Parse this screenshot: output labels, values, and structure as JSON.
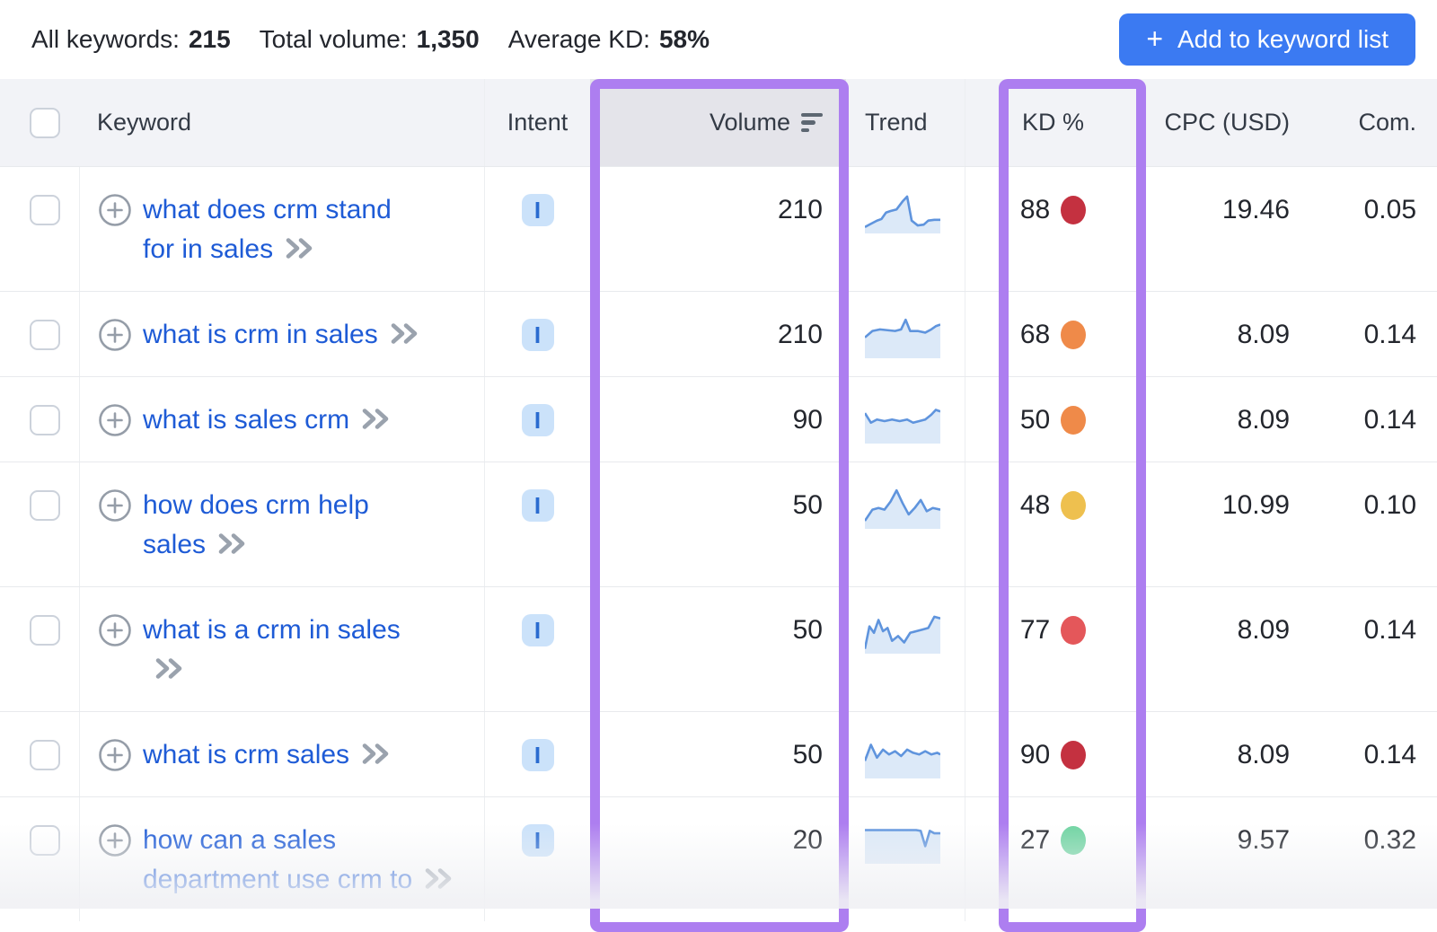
{
  "summary": {
    "items": [
      {
        "label": "All keywords:",
        "value": "215"
      },
      {
        "label": "Total volume:",
        "value": "1,350"
      },
      {
        "label": "Average KD:",
        "value": "58%"
      }
    ]
  },
  "toolbar": {
    "add_to_list": {
      "plus": "+",
      "label": "Add to keyword list"
    }
  },
  "table": {
    "headers": {
      "keyword": "Keyword",
      "intent": "Intent",
      "volume": "Volume",
      "trend": "Trend",
      "kd": "KD %",
      "cpc": "CPC (USD)",
      "com": "Com."
    },
    "rows": [
      {
        "keyword": "what does crm stand\nfor in sales",
        "intent": "I",
        "volume": "210",
        "kd": "88",
        "kd_level": "very_hard",
        "cpc": "19.46",
        "com": "0.05",
        "trend": [
          [
            0,
            48
          ],
          [
            8,
            44
          ],
          [
            16,
            40
          ],
          [
            22,
            38
          ],
          [
            28,
            30
          ],
          [
            34,
            28
          ],
          [
            42,
            26
          ],
          [
            50,
            16
          ],
          [
            56,
            10
          ],
          [
            62,
            40
          ],
          [
            70,
            46
          ],
          [
            78,
            45
          ],
          [
            84,
            40
          ],
          [
            92,
            39
          ],
          [
            100,
            39
          ]
        ]
      },
      {
        "keyword": "what is crm in sales",
        "intent": "I",
        "volume": "210",
        "kd": "68",
        "kd_level": "difficult",
        "cpc": "8.09",
        "com": "0.14",
        "trend": [
          [
            0,
            30
          ],
          [
            10,
            22
          ],
          [
            20,
            20
          ],
          [
            30,
            21
          ],
          [
            40,
            22
          ],
          [
            48,
            20
          ],
          [
            54,
            8
          ],
          [
            60,
            22
          ],
          [
            70,
            22
          ],
          [
            80,
            24
          ],
          [
            88,
            20
          ],
          [
            94,
            16
          ],
          [
            100,
            14
          ]
        ]
      },
      {
        "keyword": "what is sales crm",
        "intent": "I",
        "volume": "90",
        "kd": "50",
        "kd_level": "difficult",
        "cpc": "8.09",
        "com": "0.14",
        "trend": [
          [
            0,
            18
          ],
          [
            8,
            30
          ],
          [
            16,
            26
          ],
          [
            26,
            28
          ],
          [
            36,
            26
          ],
          [
            46,
            28
          ],
          [
            56,
            26
          ],
          [
            64,
            30
          ],
          [
            72,
            28
          ],
          [
            80,
            26
          ],
          [
            88,
            20
          ],
          [
            94,
            14
          ],
          [
            100,
            16
          ]
        ]
      },
      {
        "keyword": "how does crm help\nsales",
        "intent": "I",
        "volume": "50",
        "kd": "48",
        "kd_level": "possible",
        "cpc": "10.99",
        "com": "0.10",
        "trend": [
          [
            0,
            46
          ],
          [
            10,
            32
          ],
          [
            18,
            30
          ],
          [
            26,
            32
          ],
          [
            34,
            22
          ],
          [
            42,
            8
          ],
          [
            50,
            24
          ],
          [
            58,
            38
          ],
          [
            66,
            30
          ],
          [
            74,
            20
          ],
          [
            82,
            34
          ],
          [
            90,
            30
          ],
          [
            100,
            32
          ]
        ]
      },
      {
        "keyword": "what is a crm in sales\n​",
        "intent": "I",
        "volume": "50",
        "kd": "77",
        "kd_level": "hard",
        "cpc": "8.09",
        "com": "0.14",
        "trend": [
          [
            0,
            50
          ],
          [
            6,
            22
          ],
          [
            12,
            30
          ],
          [
            18,
            14
          ],
          [
            24,
            28
          ],
          [
            30,
            24
          ],
          [
            36,
            40
          ],
          [
            44,
            34
          ],
          [
            52,
            42
          ],
          [
            60,
            30
          ],
          [
            68,
            28
          ],
          [
            76,
            26
          ],
          [
            84,
            24
          ],
          [
            92,
            10
          ],
          [
            100,
            12
          ]
        ]
      },
      {
        "keyword": "what is crm sales",
        "intent": "I",
        "volume": "50",
        "kd": "90",
        "kd_level": "very_hard",
        "cpc": "8.09",
        "com": "0.14",
        "trend": [
          [
            0,
            34
          ],
          [
            8,
            14
          ],
          [
            16,
            30
          ],
          [
            24,
            20
          ],
          [
            32,
            26
          ],
          [
            40,
            22
          ],
          [
            48,
            28
          ],
          [
            56,
            20
          ],
          [
            64,
            24
          ],
          [
            72,
            26
          ],
          [
            80,
            22
          ],
          [
            88,
            26
          ],
          [
            96,
            24
          ],
          [
            100,
            26
          ]
        ]
      },
      {
        "keyword": "how can a sales\ndepartment use crm to",
        "intent": "I",
        "volume": "20",
        "kd": "27",
        "kd_level": "easy",
        "cpc": "9.57",
        "com": "0.32",
        "trend": [
          [
            0,
            14
          ],
          [
            55,
            14
          ],
          [
            68,
            14
          ],
          [
            74,
            15
          ],
          [
            80,
            34
          ],
          [
            86,
            15
          ],
          [
            92,
            18
          ],
          [
            100,
            18
          ]
        ]
      }
    ]
  },
  "colors": {
    "accent_purple": "#ad7ef0",
    "button_blue": "#3b7af2",
    "link_blue": "#1e5bd6",
    "intent_badge_bg": "#cbe2fa",
    "intent_badge_text": "#2a6bd0",
    "trend_line": "#5f94dd",
    "trend_fill": "#dce9f8",
    "kd_levels": {
      "very_hard": "#c43140",
      "hard": "#e4575a",
      "difficult": "#ef8a49",
      "possible": "#eec04f",
      "easy": "#70d4a2"
    }
  }
}
